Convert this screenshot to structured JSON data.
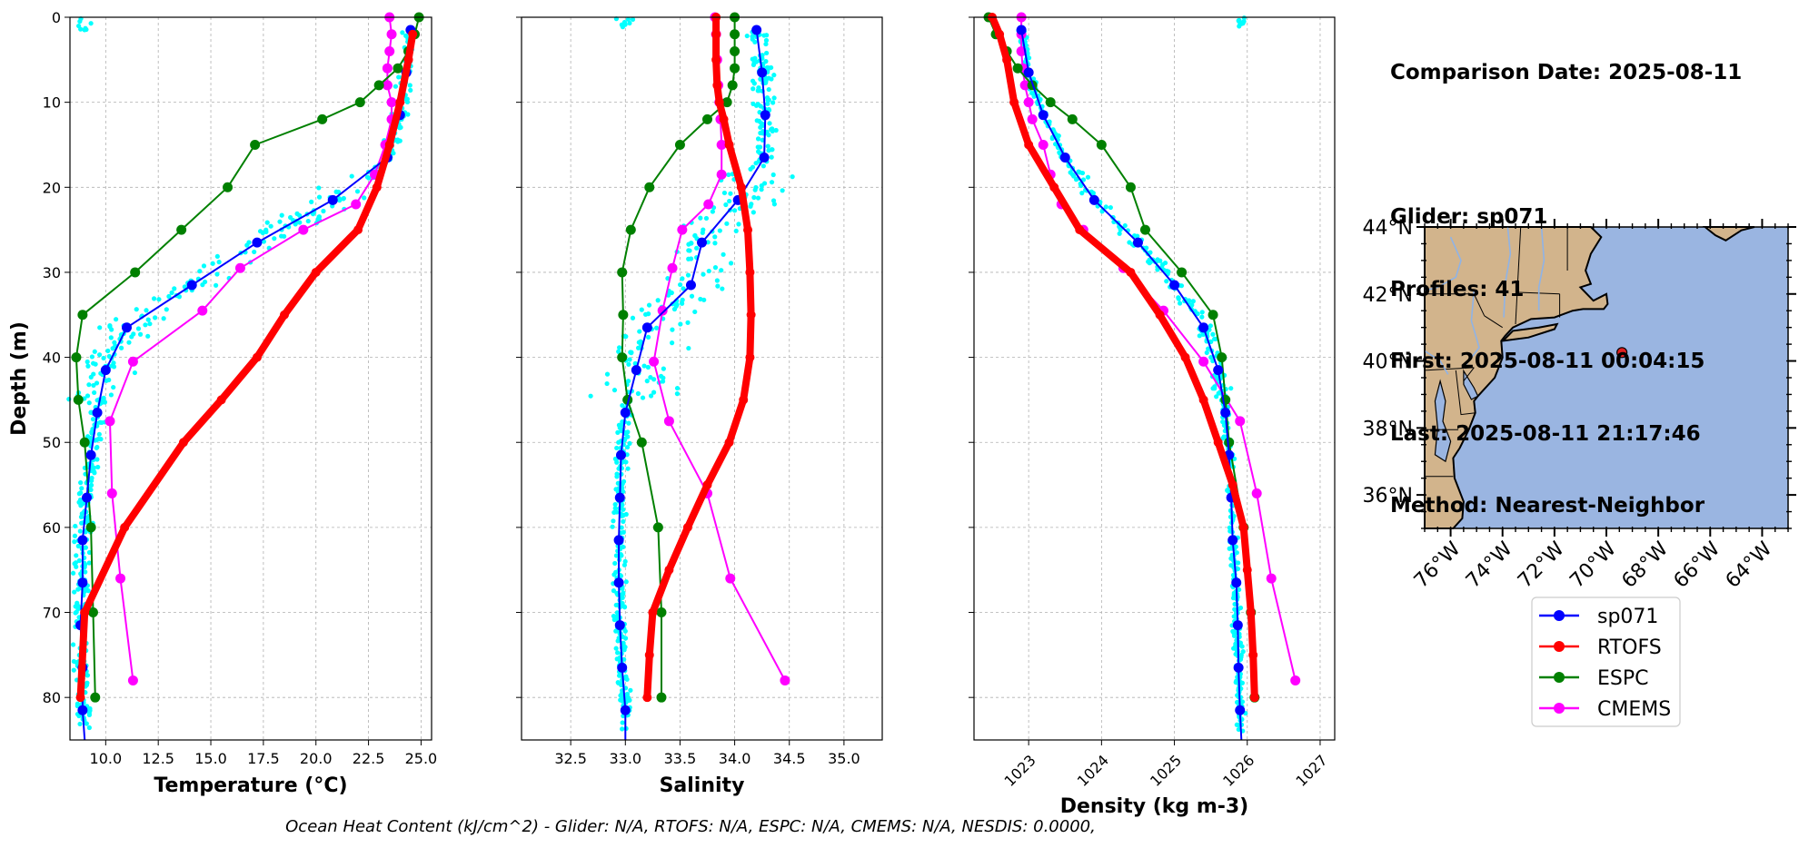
{
  "info_panel": {
    "comparison_date": "Comparison Date: 2025-08-11",
    "glider": "Glider: sp071",
    "profiles": "Profiles: 41",
    "first": "First: 2025-08-11 00:04:15",
    "last": "Last: 2025-08-11 21:17:46",
    "method": "Method: Nearest-Neighbor"
  },
  "footer": {
    "text": "Ocean Heat Content (kJ/cm^2) - Glider: N/A,  RTOFS: N/A,  ESPC: N/A,  CMEMS: N/A,  NESDIS: 0.0000,"
  },
  "colors": {
    "glider": "#0000ff",
    "rtofs": "#ff0000",
    "espc": "#008000",
    "cmems": "#ff00ff",
    "scatter": "#00ffff",
    "land": "#d2b48c",
    "ocean": "#9ab5e1"
  },
  "legend": [
    {
      "label": "sp071",
      "color": "#0000ff"
    },
    {
      "label": "RTOFS",
      "color": "#ff0000"
    },
    {
      "label": "ESPC",
      "color": "#008000"
    },
    {
      "label": "CMEMS",
      "color": "#ff00ff"
    }
  ],
  "chart_data": [
    {
      "type": "line",
      "title": "",
      "xlabel": "Temperature (°C)",
      "ylabel": "Depth (m)",
      "xlim": [
        8.3,
        25.5
      ],
      "ylim": [
        85,
        0
      ],
      "xticks": [
        "10.0",
        "12.5",
        "15.0",
        "17.5",
        "20.0",
        "22.5",
        "25.0"
      ],
      "yticks": [
        "0",
        "10",
        "20",
        "30",
        "40",
        "50",
        "60",
        "70",
        "80"
      ],
      "grid": true,
      "series": [
        {
          "name": "sp071",
          "depth": [
            1.5,
            6.5,
            11.5,
            16.5,
            21.5,
            26.5,
            31.5,
            36.5,
            41.5,
            46.5,
            51.5,
            56.5,
            61.5,
            66.5,
            71.5,
            76.5,
            81.5,
            85
          ],
          "values": [
            24.5,
            24.3,
            24.0,
            23.4,
            20.8,
            17.2,
            14.1,
            11.0,
            10.0,
            9.6,
            9.3,
            9.1,
            8.9,
            8.9,
            8.8,
            8.9,
            8.9,
            9.0
          ]
        },
        {
          "name": "RTOFS",
          "depth": [
            2,
            5,
            10,
            15,
            20,
            25,
            30,
            35,
            40,
            45,
            50,
            60,
            70,
            80
          ],
          "values": [
            24.6,
            24.4,
            24.0,
            23.5,
            22.9,
            22.0,
            20.0,
            18.5,
            17.2,
            15.5,
            13.7,
            10.9,
            9.0,
            8.8
          ]
        },
        {
          "name": "ESPC",
          "depth": [
            0,
            2,
            4,
            6,
            8,
            10,
            12,
            15,
            20,
            25,
            30,
            35,
            40,
            45,
            50,
            60,
            70,
            80
          ],
          "values": [
            24.9,
            24.7,
            24.4,
            23.9,
            23.0,
            22.1,
            20.3,
            17.1,
            15.8,
            13.6,
            11.4,
            8.9,
            8.6,
            8.7,
            9.0,
            9.3,
            9.4,
            9.5
          ]
        },
        {
          "name": "CMEMS",
          "depth": [
            0,
            2,
            4,
            6,
            8,
            10,
            12,
            15,
            18.5,
            22,
            25,
            29.5,
            34.5,
            40.5,
            47.5,
            56,
            66,
            78
          ],
          "values": [
            23.5,
            23.6,
            23.5,
            23.4,
            23.4,
            23.6,
            23.6,
            23.3,
            22.8,
            21.9,
            19.4,
            16.4,
            14.6,
            11.3,
            10.2,
            10.3,
            10.7,
            11.3
          ]
        }
      ]
    },
    {
      "type": "line",
      "title": "",
      "xlabel": "Salinity",
      "ylabel": "",
      "xlim": [
        32.05,
        35.35
      ],
      "ylim": [
        85,
        0
      ],
      "xticks": [
        "32.5",
        "33.0",
        "33.5",
        "34.0",
        "34.5",
        "35.0"
      ],
      "grid": true,
      "series": [
        {
          "name": "sp071",
          "depth": [
            1.5,
            6.5,
            11.5,
            16.5,
            21.5,
            26.5,
            31.5,
            36.5,
            41.5,
            46.5,
            51.5,
            56.5,
            61.5,
            66.5,
            71.5,
            76.5,
            81.5,
            85
          ],
          "values": [
            34.2,
            34.25,
            34.28,
            34.27,
            34.03,
            33.7,
            33.6,
            33.2,
            33.1,
            33.0,
            32.96,
            32.95,
            32.94,
            32.94,
            32.95,
            32.97,
            33.0,
            33.0
          ]
        },
        {
          "name": "RTOFS",
          "depth": [
            0,
            2,
            5,
            8,
            10,
            12,
            15,
            20,
            25,
            30,
            35,
            40,
            45,
            50,
            55,
            60,
            65,
            70,
            75,
            80
          ],
          "values": [
            33.83,
            33.83,
            33.83,
            33.84,
            33.86,
            33.9,
            33.95,
            34.06,
            34.12,
            34.14,
            34.15,
            34.14,
            34.08,
            33.95,
            33.75,
            33.57,
            33.4,
            33.25,
            33.22,
            33.2
          ]
        },
        {
          "name": "ESPC",
          "depth": [
            0,
            2,
            4,
            6,
            8,
            10,
            12,
            15,
            20,
            25,
            30,
            35,
            40,
            45,
            50,
            60,
            70,
            80
          ],
          "values": [
            34.0,
            34.0,
            34.0,
            34.0,
            33.98,
            33.93,
            33.75,
            33.5,
            33.22,
            33.05,
            32.97,
            32.98,
            32.97,
            33.02,
            33.15,
            33.3,
            33.33,
            33.33
          ]
        },
        {
          "name": "CMEMS",
          "depth": [
            0,
            2,
            5,
            8,
            10,
            12,
            15,
            18.5,
            22,
            25,
            29.5,
            34.5,
            40.5,
            47.5,
            56,
            66,
            78
          ],
          "values": [
            33.82,
            33.83,
            33.84,
            33.85,
            33.86,
            33.87,
            33.88,
            33.88,
            33.76,
            33.52,
            33.43,
            33.34,
            33.26,
            33.4,
            33.75,
            33.96,
            34.46
          ]
        }
      ]
    },
    {
      "type": "line",
      "title": "",
      "xlabel": "Density (kg m-3)",
      "ylabel": "",
      "xlim": [
        1022.25,
        1027.2
      ],
      "ylim": [
        85,
        0
      ],
      "xticks": [
        "1023",
        "1024",
        "1025",
        "1026",
        "1027"
      ],
      "grid": true,
      "series": [
        {
          "name": "sp071",
          "depth": [
            1.5,
            6.5,
            11.5,
            16.5,
            21.5,
            26.5,
            31.5,
            36.5,
            41.5,
            46.5,
            51.5,
            56.5,
            61.5,
            66.5,
            71.5,
            76.5,
            81.5,
            85
          ],
          "values": [
            1022.9,
            1023.0,
            1023.2,
            1023.5,
            1023.9,
            1024.5,
            1025.0,
            1025.4,
            1025.6,
            1025.7,
            1025.75,
            1025.78,
            1025.8,
            1025.85,
            1025.87,
            1025.88,
            1025.9,
            1025.92
          ]
        },
        {
          "name": "RTOFS",
          "depth": [
            0,
            2,
            5,
            10,
            15,
            20,
            25,
            30,
            35,
            40,
            45,
            50,
            55,
            60,
            65,
            70,
            75,
            80
          ],
          "values": [
            1022.5,
            1022.6,
            1022.7,
            1022.8,
            1023.0,
            1023.35,
            1023.7,
            1024.4,
            1024.8,
            1025.15,
            1025.4,
            1025.6,
            1025.8,
            1025.95,
            1026.0,
            1026.05,
            1026.08,
            1026.1
          ]
        },
        {
          "name": "ESPC",
          "depth": [
            0,
            2,
            4,
            6,
            8,
            10,
            12,
            15,
            20,
            25,
            30,
            35,
            40,
            45,
            50,
            60,
            70,
            80
          ],
          "values": [
            1022.45,
            1022.55,
            1022.7,
            1022.85,
            1023.05,
            1023.3,
            1023.6,
            1024.0,
            1024.4,
            1024.6,
            1025.1,
            1025.53,
            1025.65,
            1025.7,
            1025.75,
            1025.95,
            1026.05,
            1026.1
          ]
        },
        {
          "name": "CMEMS",
          "depth": [
            0,
            2,
            4,
            6,
            8,
            10,
            12,
            15,
            18.5,
            22,
            25,
            29.5,
            34.5,
            40.5,
            47.5,
            56,
            66,
            78
          ],
          "values": [
            1022.9,
            1022.9,
            1022.9,
            1022.92,
            1022.95,
            1023.0,
            1023.05,
            1023.2,
            1023.3,
            1023.45,
            1023.75,
            1024.3,
            1024.85,
            1025.4,
            1025.9,
            1026.13,
            1026.33,
            1026.66
          ]
        }
      ]
    }
  ],
  "map": {
    "lat_ticks": [
      "44°N",
      "42°N",
      "40°N",
      "38°N",
      "36°N"
    ],
    "lon_ticks": [
      "76°W",
      "74°W",
      "72°W",
      "70°W",
      "68°W",
      "66°W",
      "64°W"
    ],
    "lon_range": [
      -77,
      -63
    ],
    "lat_range": [
      35,
      44
    ],
    "glider_position": {
      "lon": -69.4,
      "lat": 40.25
    }
  }
}
